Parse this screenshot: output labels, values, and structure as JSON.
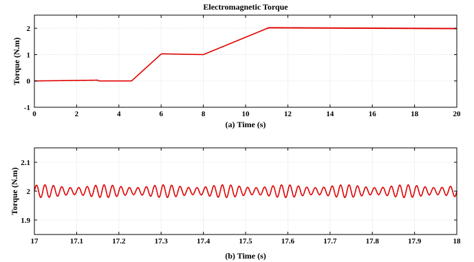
{
  "chart_data": [
    {
      "type": "line",
      "title": "Electromagnetic Torque",
      "xlabel": "(a)  Time (s)",
      "ylabel": "Torque (N.m)",
      "xlim": [
        0,
        20
      ],
      "ylim": [
        -1,
        2.5
      ],
      "xticks": [
        0,
        2,
        4,
        6,
        8,
        10,
        12,
        14,
        16,
        18,
        20
      ],
      "xtick_labels": [
        "0",
        "2",
        "4",
        "6",
        "8",
        "10",
        "12",
        "14",
        "16",
        "18",
        "20"
      ],
      "yticks": [
        -1,
        0,
        1,
        2
      ],
      "ytick_labels": [
        "-1",
        "0",
        "1",
        "2"
      ],
      "grid": true,
      "line_color": "#e00000",
      "series": [
        {
          "x": [
            0,
            3,
            3.05,
            4.6,
            6.0,
            6.05,
            8.0,
            11.0,
            11.1,
            20
          ],
          "y": [
            0.0,
            0.03,
            0.0,
            0.0,
            1.02,
            1.03,
            1.0,
            1.99,
            2.02,
            1.99
          ]
        }
      ]
    },
    {
      "type": "line",
      "title": "",
      "xlabel": "(b)  Time (s)",
      "ylabel": "Torque (N.m)",
      "xlim": [
        17,
        18
      ],
      "ylim": [
        1.85,
        2.15
      ],
      "xticks": [
        17,
        17.1,
        17.2,
        17.3,
        17.4,
        17.5,
        17.6,
        17.7,
        17.8,
        17.9,
        18
      ],
      "xtick_labels": [
        "17",
        "17.1",
        "17.2",
        "17.3",
        "17.4",
        "17.5",
        "17.6",
        "17.7",
        "17.8",
        "17.9",
        "18"
      ],
      "yticks": [
        1.9,
        2,
        2.1
      ],
      "ytick_labels": [
        "1.9",
        "2",
        "2.1"
      ],
      "grid": true,
      "line_color": "#e00000",
      "series": [
        {
          "mean": 2.0,
          "amplitude": 0.02,
          "oscillation_frequency_hz": 50,
          "x_range": [
            17,
            18
          ]
        }
      ]
    }
  ]
}
